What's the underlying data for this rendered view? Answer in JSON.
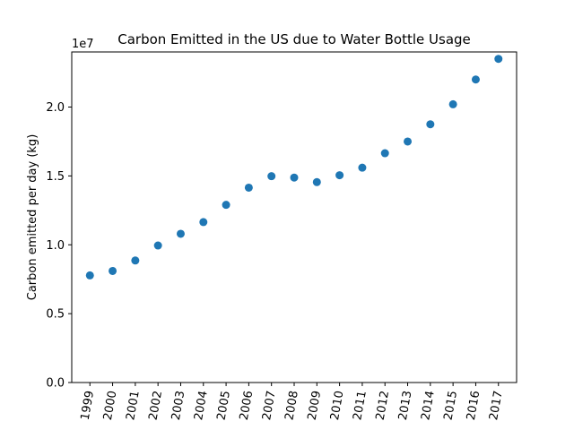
{
  "chart_data": {
    "type": "scatter",
    "title": "Carbon Emitted in the US due to Water Bottle Usage",
    "xlabel": "",
    "ylabel": "Carbon emitted per day (kg)",
    "offset_text": "1e7",
    "y_scale": 10000000,
    "ylim": [
      0,
      24000000
    ],
    "yticks": [
      0,
      5000000,
      10000000,
      15000000,
      20000000
    ],
    "ytick_labels": [
      "0.0",
      "0.5",
      "1.0",
      "1.5",
      "2.0"
    ],
    "grid": false,
    "marker_color": "#1f77b4",
    "x": [
      "1999",
      "2000",
      "2001",
      "2002",
      "2003",
      "2004",
      "2005",
      "2006",
      "2007",
      "2008",
      "2009",
      "2010",
      "2011",
      "2012",
      "2013",
      "2014",
      "2015",
      "2016",
      "2017"
    ],
    "y": [
      7780000,
      8100000,
      8860000,
      9950000,
      10800000,
      11650000,
      12900000,
      14150000,
      14980000,
      14880000,
      14550000,
      15050000,
      15600000,
      16650000,
      17500000,
      18750000,
      20200000,
      22000000,
      23500000
    ]
  }
}
